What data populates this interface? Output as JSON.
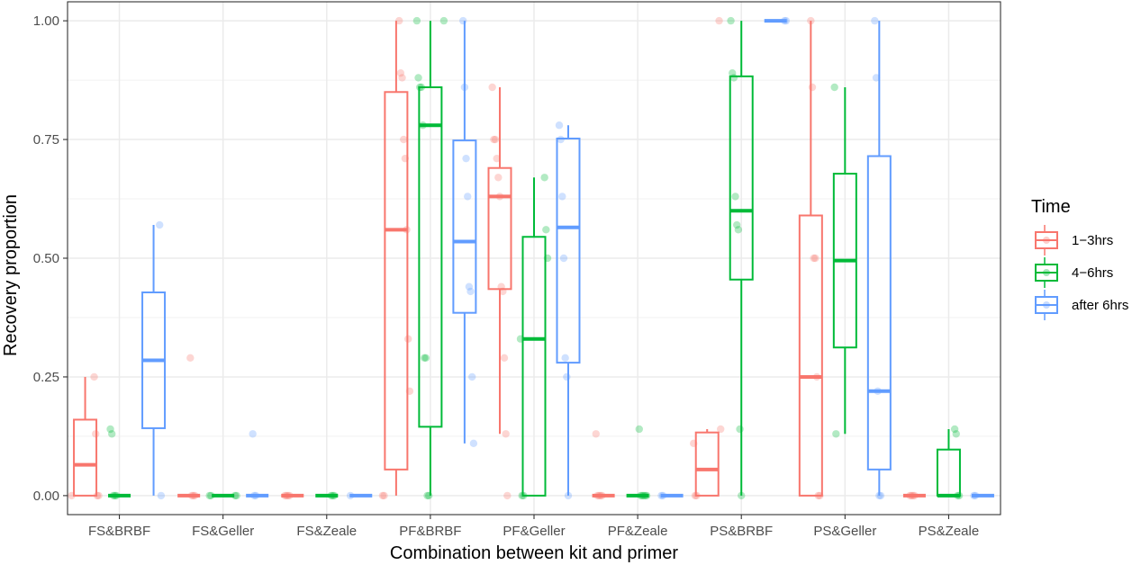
{
  "chart_data": {
    "type": "boxplot",
    "xlabel": "Combination between kit and primer",
    "ylabel": "Recovery proportion",
    "ylim": [
      -0.04,
      1.04
    ],
    "yticks": [
      0,
      0.25,
      0.5,
      0.75,
      1.0
    ],
    "ytick_labels": [
      "0.00",
      "0.25",
      "0.50",
      "0.75",
      "1.00"
    ],
    "grid": true,
    "legend_position": "right",
    "legend": {
      "title": "Time",
      "entries": [
        {
          "label": "1−3hrs",
          "color": "#F8766D"
        },
        {
          "label": "4−6hrs",
          "color": "#00BA38"
        },
        {
          "label": "after 6hrs",
          "color": "#619CFF"
        }
      ]
    },
    "categories": [
      "FS&BRBF",
      "FS&Geller",
      "FS&Zeale",
      "PF&BRBF",
      "PF&Geller",
      "PF&Zeale",
      "PS&BRBF",
      "PS&Geller",
      "PS&Zeale"
    ],
    "series": [
      {
        "name": "1−3hrs",
        "color": "#F8766D",
        "boxes": [
          {
            "min": 0,
            "q1": 0,
            "median": 0.065,
            "q3": 0.16,
            "max": 0.25,
            "points": [
              0,
              0,
              0,
              0.13,
              0.25
            ]
          },
          {
            "min": 0,
            "q1": 0,
            "median": 0,
            "q3": 0,
            "max": 0,
            "points": [
              0,
              0,
              0,
              0.29
            ]
          },
          {
            "min": 0,
            "q1": 0,
            "median": 0,
            "q3": 0,
            "max": 0,
            "points": [
              0,
              0,
              0,
              0
            ]
          },
          {
            "min": 0,
            "q1": 0.055,
            "median": 0.56,
            "q3": 0.85,
            "max": 1.0,
            "points": [
              0,
              0,
              0.22,
              0.33,
              0.56,
              0.71,
              0.75,
              0.88,
              0.89,
              1.0
            ]
          },
          {
            "min": 0.13,
            "q1": 0.435,
            "median": 0.63,
            "q3": 0.69,
            "max": 0.86,
            "points": [
              0,
              0.13,
              0.29,
              0.43,
              0.44,
              0.63,
              0.67,
              0.71,
              0.75,
              0.75,
              0.86
            ]
          },
          {
            "min": 0,
            "q1": 0,
            "median": 0,
            "q3": 0,
            "max": 0,
            "points": [
              0,
              0,
              0,
              0,
              0.13
            ]
          },
          {
            "min": 0,
            "q1": 0,
            "median": 0.055,
            "q3": 0.133,
            "max": 0.14,
            "points": [
              0,
              0,
              0.11,
              0.14,
              1.0
            ]
          },
          {
            "min": 0,
            "q1": 0,
            "median": 0.25,
            "q3": 0.59,
            "max": 1.0,
            "points": [
              0,
              0,
              0.25,
              0.5,
              0.5,
              0.86,
              1.0
            ]
          },
          {
            "min": 0,
            "q1": 0,
            "median": 0,
            "q3": 0,
            "max": 0,
            "points": [
              0,
              0,
              0,
              0
            ]
          }
        ]
      },
      {
        "name": "4−6hrs",
        "color": "#00BA38",
        "boxes": [
          {
            "min": 0,
            "q1": 0,
            "median": 0,
            "q3": 0,
            "max": 0,
            "points": [
              0,
              0,
              0,
              0.13,
              0.14
            ]
          },
          {
            "min": 0,
            "q1": 0,
            "median": 0,
            "q3": 0,
            "max": 0,
            "points": [
              0,
              0,
              0,
              0
            ]
          },
          {
            "min": 0,
            "q1": 0,
            "median": 0,
            "q3": 0,
            "max": 0,
            "points": [
              0,
              0,
              0
            ]
          },
          {
            "min": 0,
            "q1": 0.145,
            "median": 0.78,
            "q3": 0.86,
            "max": 1.0,
            "points": [
              0,
              0,
              0.29,
              0.29,
              0.78,
              0.86,
              0.86,
              0.88,
              1.0,
              1.0
            ]
          },
          {
            "min": 0,
            "q1": 0,
            "median": 0.33,
            "q3": 0.545,
            "max": 0.67,
            "points": [
              0,
              0,
              0.33,
              0.5,
              0.56,
              0.67
            ]
          },
          {
            "min": 0,
            "q1": 0,
            "median": 0,
            "q3": 0,
            "max": 0,
            "points": [
              0,
              0,
              0,
              0,
              0,
              0.14
            ]
          },
          {
            "min": 0,
            "q1": 0.455,
            "median": 0.6,
            "q3": 0.883,
            "max": 1.0,
            "points": [
              0,
              0.14,
              0.56,
              0.57,
              0.63,
              0.88,
              0.89,
              1.0
            ]
          },
          {
            "min": 0.13,
            "q1": 0.312,
            "median": 0.495,
            "q3": 0.678,
            "max": 0.86,
            "points": [
              0.13,
              0.86
            ]
          },
          {
            "min": 0,
            "q1": 0,
            "median": 0,
            "q3": 0.097,
            "max": 0.14,
            "points": [
              0,
              0,
              0.13,
              0.14
            ]
          }
        ]
      },
      {
        "name": "after 6hrs",
        "color": "#619CFF",
        "boxes": [
          {
            "min": 0,
            "q1": 0.142,
            "median": 0.285,
            "q3": 0.428,
            "max": 0.57,
            "points": [
              0,
              0.57
            ]
          },
          {
            "min": 0,
            "q1": 0,
            "median": 0,
            "q3": 0,
            "max": 0,
            "points": [
              0,
              0,
              0.13
            ]
          },
          {
            "min": 0,
            "q1": 0,
            "median": 0,
            "q3": 0,
            "max": 0,
            "points": [
              0
            ]
          },
          {
            "min": 0.11,
            "q1": 0.385,
            "median": 0.535,
            "q3": 0.748,
            "max": 1.0,
            "points": [
              0.11,
              0.25,
              0.43,
              0.44,
              0.63,
              0.71,
              0.86,
              1.0
            ]
          },
          {
            "min": 0,
            "q1": 0.28,
            "median": 0.565,
            "q3": 0.752,
            "max": 0.78,
            "points": [
              0,
              0.25,
              0.29,
              0.5,
              0.63,
              0.75,
              0.78
            ]
          },
          {
            "min": 0,
            "q1": 0,
            "median": 0,
            "q3": 0,
            "max": 0,
            "points": [
              0,
              0
            ]
          },
          {
            "min": 1.0,
            "q1": 1.0,
            "median": 1.0,
            "q3": 1.0,
            "max": 1.0,
            "points": [
              1.0,
              1.0
            ]
          },
          {
            "min": 0,
            "q1": 0.055,
            "median": 0.22,
            "q3": 0.715,
            "max": 1.0,
            "points": [
              0,
              0,
              0.22,
              0.88,
              1.0
            ]
          },
          {
            "min": 0,
            "q1": 0,
            "median": 0,
            "q3": 0,
            "max": 0,
            "points": [
              0,
              0
            ]
          }
        ]
      }
    ]
  }
}
